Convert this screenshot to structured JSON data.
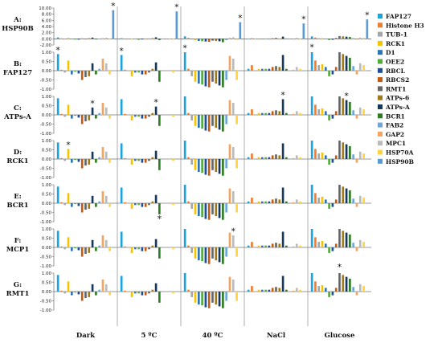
{
  "chart_data": {
    "type": "bar",
    "conditions": [
      "Dark",
      "5 ºC",
      "40 ºC",
      "NaCl",
      "Glucose"
    ],
    "genes": [
      "FAP127",
      "Histone H3",
      "TUB-1",
      "RCK1",
      "D1",
      "OEE2",
      "RBCL",
      "RBCS2",
      "RMT1",
      "ATPs-6",
      "ATPs-A",
      "BCR1",
      "FAB2",
      "GAP2",
      "MPC1",
      "HSP70A",
      "HSP90B"
    ],
    "colors": [
      "#1aa3dd",
      "#f07d2d",
      "#a6a6a6",
      "#f5c400",
      "#2e75b6",
      "#55aa3c",
      "#1f4e96",
      "#c55a11",
      "#666666",
      "#a07a14",
      "#17385e",
      "#2e7d22",
      "#6ea6dc",
      "#f4a460",
      "#bbbbbb",
      "#ffd23f",
      "#5b9bd5"
    ],
    "rows": [
      {
        "label_top": "A:",
        "label_bottom": "HSP90B",
        "ylim": [
          -2,
          10
        ],
        "ticks": [
          "10.00",
          "8.00",
          "6.00",
          "4.00",
          "2.00",
          "0.00",
          "-2.00"
        ],
        "panels": [
          [
            0.45,
            0.15,
            0.05,
            0.3,
            0.05,
            -0.2,
            -0.25,
            0.15,
            -0.1,
            0.2,
            0.4,
            -0.15,
            0.1,
            0.2,
            0.3,
            0.1,
            9.3
          ],
          [
            0.2,
            0.05,
            0,
            0.1,
            0.1,
            -0.3,
            -0.2,
            0.1,
            0.1,
            0.2,
            0.5,
            -0.4,
            0.1,
            0.05,
            0.1,
            0.1,
            8.9
          ],
          [
            0.8,
            0.3,
            -0.2,
            -0.5,
            -0.7,
            -0.8,
            -0.9,
            -1.0,
            -0.6,
            -0.7,
            -0.8,
            -1.1,
            -0.4,
            0.3,
            0.5,
            -0.3,
            5.4
          ],
          [
            0.1,
            0.2,
            0.1,
            0,
            0,
            0.1,
            0.1,
            0.2,
            0.3,
            0.1,
            0.7,
            0.1,
            0,
            0,
            0.3,
            0.1,
            5.0
          ],
          [
            0.8,
            0.4,
            0.2,
            0.2,
            0.1,
            -0.4,
            -0.3,
            0.3,
            0.9,
            0.8,
            0.7,
            0.6,
            0.2,
            -0.2,
            0.4,
            0.3,
            6.3
          ]
        ],
        "stars": [
          16,
          16,
          16,
          16,
          16
        ]
      },
      {
        "label_top": "B:",
        "label_bottom": "FAP127",
        "ylim": [
          -1,
          1
        ],
        "ticks": [
          "1.00",
          "0.50",
          "0.00",
          "-0.50",
          "-1.00"
        ],
        "panels": [
          [
            0.9,
            0.05,
            -0.1,
            0.55,
            -0.2,
            -0.05,
            -0.15,
            -0.5,
            -0.35,
            -0.3,
            0.4,
            -0.2,
            0.1,
            0.65,
            0.4,
            -0.2,
            0
          ],
          [
            0.85,
            0.05,
            0,
            -0.3,
            -0.1,
            -0.1,
            -0.2,
            -0.2,
            -0.1,
            0.1,
            0.45,
            -0.6,
            0,
            0,
            0,
            -0.1,
            0
          ],
          [
            1.0,
            0.1,
            -0.3,
            -0.6,
            -0.7,
            -0.75,
            -0.85,
            -0.9,
            -0.6,
            -0.7,
            -0.8,
            -0.9,
            -0.5,
            0.8,
            0.65,
            -0.5,
            0
          ],
          [
            0.1,
            0.3,
            0,
            0.1,
            0.1,
            0.1,
            0.1,
            0.2,
            0.25,
            0.2,
            0.85,
            0.1,
            0,
            0.05,
            0.2,
            0.1,
            0
          ],
          [
            1.05,
            0.55,
            0.3,
            0.35,
            0.2,
            -0.3,
            -0.2,
            0.2,
            1.1,
            0.9,
            0.8,
            0.7,
            0.25,
            -0.2,
            0.4,
            0.3,
            0
          ]
        ],
        "stars": [
          0,
          0,
          0,
          null,
          0
        ]
      },
      {
        "label_top": "C:",
        "label_bottom": "ATPs-A",
        "ylim": [
          -1,
          1
        ],
        "ticks": [
          "1.00",
          "0.50",
          "0.00",
          "-0.50",
          "-1.00"
        ],
        "panels": [
          [
            0.9,
            0.05,
            -0.1,
            0.55,
            -0.2,
            -0.05,
            -0.15,
            -0.5,
            -0.35,
            -0.3,
            0.4,
            -0.2,
            0.1,
            0.65,
            0.4,
            -0.2,
            0
          ],
          [
            0.85,
            0.05,
            0,
            -0.3,
            -0.1,
            -0.1,
            -0.2,
            -0.2,
            -0.1,
            0.1,
            0.45,
            -0.6,
            0,
            0,
            0,
            -0.1,
            0
          ],
          [
            1.0,
            0.1,
            -0.3,
            -0.6,
            -0.7,
            -0.75,
            -0.85,
            -0.9,
            -0.6,
            -0.7,
            -0.8,
            -0.9,
            -0.5,
            0.8,
            0.65,
            -0.5,
            0
          ],
          [
            0.1,
            0.3,
            0,
            0.1,
            0.1,
            0.1,
            0.1,
            0.2,
            0.25,
            0.2,
            0.85,
            0.1,
            0,
            0.05,
            0.2,
            0.1,
            0
          ],
          [
            1.05,
            0.55,
            0.3,
            0.35,
            0.2,
            -0.3,
            -0.2,
            0.2,
            1.1,
            0.9,
            0.8,
            0.7,
            0.25,
            -0.2,
            0.4,
            0.3,
            0
          ]
        ],
        "stars": [
          10,
          10,
          null,
          10,
          10
        ]
      },
      {
        "label_top": "D:",
        "label_bottom": "RCK1",
        "ylim": [
          -1,
          1
        ],
        "ticks": [
          "1.00",
          "0.50",
          "0.00",
          "-0.50",
          "-1.00"
        ],
        "panels": [
          [
            0.9,
            0.05,
            -0.1,
            0.55,
            -0.2,
            -0.05,
            -0.15,
            -0.5,
            -0.35,
            -0.3,
            0.4,
            -0.2,
            0.1,
            0.65,
            0.4,
            -0.2,
            0
          ],
          [
            0.85,
            0.05,
            0,
            -0.3,
            -0.1,
            -0.1,
            -0.2,
            -0.2,
            -0.1,
            0.1,
            0.45,
            -0.6,
            0,
            0,
            0,
            -0.1,
            0
          ],
          [
            1.0,
            0.1,
            -0.3,
            -0.6,
            -0.7,
            -0.75,
            -0.85,
            -0.9,
            -0.6,
            -0.7,
            -0.8,
            -0.9,
            -0.5,
            0.8,
            0.65,
            -0.5,
            0
          ],
          [
            0.1,
            0.3,
            0,
            0.1,
            0.1,
            0.1,
            0.1,
            0.2,
            0.25,
            0.2,
            0.85,
            0.1,
            0,
            0.05,
            0.2,
            0.1,
            0
          ],
          [
            1.05,
            0.55,
            0.3,
            0.35,
            0.2,
            -0.3,
            -0.2,
            0.2,
            1.1,
            0.9,
            0.8,
            0.7,
            0.25,
            -0.2,
            0.4,
            0.3,
            0
          ]
        ],
        "stars": [
          3,
          null,
          null,
          null,
          null
        ]
      },
      {
        "label_top": "E:",
        "label_bottom": "BCR1",
        "ylim": [
          -1,
          1
        ],
        "ticks": [
          "1.00",
          "0.50",
          "0.00",
          "-0.50",
          "-1.00"
        ],
        "panels": [
          [
            0.9,
            0.05,
            -0.1,
            0.55,
            -0.2,
            -0.05,
            -0.15,
            -0.5,
            -0.35,
            -0.3,
            0.4,
            -0.2,
            0.1,
            0.65,
            0.4,
            -0.2,
            0
          ],
          [
            0.85,
            0.05,
            0,
            -0.3,
            -0.1,
            -0.1,
            -0.2,
            -0.2,
            -0.1,
            0.1,
            0.45,
            -0.6,
            0,
            0,
            0,
            -0.1,
            0
          ],
          [
            1.0,
            0.1,
            -0.3,
            -0.6,
            -0.7,
            -0.75,
            -0.85,
            -0.9,
            -0.6,
            -0.7,
            -0.8,
            -0.9,
            -0.5,
            0.8,
            0.65,
            -0.5,
            0
          ],
          [
            0.1,
            0.3,
            0,
            0.1,
            0.1,
            0.1,
            0.1,
            0.2,
            0.25,
            0.2,
            0.85,
            0.1,
            0,
            0.05,
            0.2,
            0.1,
            0
          ],
          [
            1.05,
            0.55,
            0.3,
            0.35,
            0.2,
            -0.3,
            -0.2,
            0.2,
            1.1,
            0.9,
            0.8,
            0.7,
            0.25,
            -0.2,
            0.4,
            0.3,
            0
          ]
        ],
        "stars": [
          null,
          11,
          null,
          null,
          null
        ]
      },
      {
        "label_top": "F:",
        "label_bottom": "MCP1",
        "ylim": [
          -1,
          1
        ],
        "ticks": [
          "1.00",
          "0.50",
          "0.00",
          "-0.50",
          "-1.00"
        ],
        "panels": [
          [
            0.9,
            0.05,
            -0.1,
            0.55,
            -0.2,
            -0.05,
            -0.15,
            -0.5,
            -0.35,
            -0.3,
            0.4,
            -0.2,
            0.1,
            0.65,
            0.4,
            -0.2,
            0
          ],
          [
            0.85,
            0.05,
            0,
            -0.3,
            -0.1,
            -0.1,
            -0.2,
            -0.2,
            -0.1,
            0.1,
            0.45,
            -0.6,
            0,
            0,
            0,
            -0.1,
            0
          ],
          [
            1.0,
            0.1,
            -0.3,
            -0.6,
            -0.7,
            -0.75,
            -0.85,
            -0.9,
            -0.6,
            -0.7,
            -0.8,
            -0.9,
            -0.5,
            0.8,
            0.65,
            -0.5,
            0
          ],
          [
            0.1,
            0.3,
            0,
            0.1,
            0.1,
            0.1,
            0.1,
            0.2,
            0.25,
            0.2,
            0.85,
            0.1,
            0,
            0.05,
            0.2,
            0.1,
            0
          ],
          [
            1.05,
            0.55,
            0.3,
            0.35,
            0.2,
            -0.3,
            -0.2,
            0.2,
            1.1,
            0.9,
            0.8,
            0.7,
            0.25,
            -0.2,
            0.4,
            0.3,
            0
          ]
        ],
        "stars": [
          null,
          null,
          14,
          null,
          null
        ]
      },
      {
        "label_top": "G:",
        "label_bottom": "RMT1",
        "ylim": [
          -1,
          1
        ],
        "ticks": [
          "1.00",
          "0.50",
          "0.00",
          "-0.50",
          "-1.00"
        ],
        "panels": [
          [
            0.9,
            0.05,
            -0.1,
            0.55,
            -0.2,
            -0.05,
            -0.15,
            -0.5,
            -0.35,
            -0.3,
            0.4,
            -0.2,
            0.1,
            0.65,
            0.4,
            -0.2,
            0
          ],
          [
            0.85,
            0.05,
            0,
            -0.3,
            -0.1,
            -0.1,
            -0.2,
            -0.2,
            -0.1,
            0.1,
            0.45,
            -0.6,
            0,
            0,
            0,
            -0.1,
            0
          ],
          [
            1.0,
            0.1,
            -0.3,
            -0.6,
            -0.7,
            -0.75,
            -0.85,
            -0.9,
            -0.6,
            -0.7,
            -0.8,
            -0.9,
            -0.5,
            0.8,
            0.65,
            -0.5,
            0
          ],
          [
            0.1,
            0.3,
            0,
            0.1,
            0.1,
            0.1,
            0.1,
            0.2,
            0.25,
            0.2,
            0.85,
            0.1,
            0,
            0.05,
            0.2,
            0.1,
            0
          ],
          [
            1.05,
            0.55,
            0.3,
            0.35,
            0.2,
            -0.3,
            -0.2,
            0.2,
            1.1,
            0.9,
            0.8,
            0.7,
            0.25,
            -0.2,
            0.4,
            0.3,
            0
          ]
        ],
        "stars": [
          null,
          null,
          null,
          null,
          8
        ]
      }
    ],
    "star_symbol": "*",
    "legend_placement": "right",
    "grid": false
  }
}
